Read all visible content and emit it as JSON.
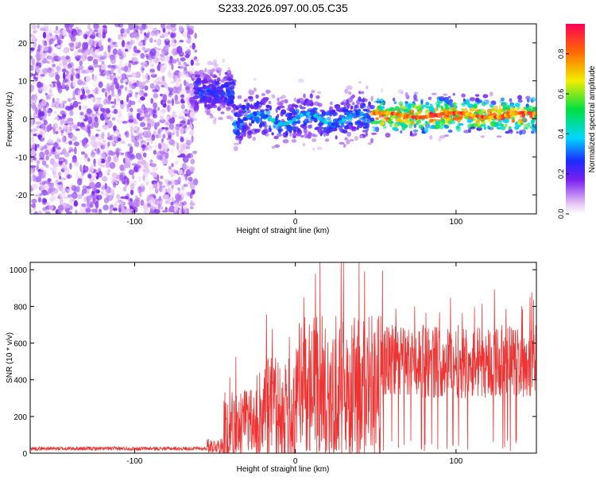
{
  "title": "S233.2026.097.00.05.C35",
  "chart_data": [
    {
      "type": "heatmap",
      "name": "spectrogram",
      "xlabel": "Height of straight line (km)",
      "ylabel": "Frequency (Hz)",
      "xlim": [
        -165,
        150
      ],
      "ylim": [
        -25,
        25
      ],
      "xticks": [
        -100,
        0,
        100
      ],
      "yticks": [
        -20,
        -10,
        0,
        10,
        20
      ],
      "colorbar": {
        "label": "Normalized spectral amplitude",
        "range": [
          0,
          0.95
        ],
        "ticks": [
          0.0,
          0.2,
          0.4,
          0.6,
          0.8
        ]
      },
      "regions": [
        {
          "x": [
            -165,
            -62
          ],
          "description": "broadband noise",
          "amplitude": 0.1
        },
        {
          "x": [
            -62,
            -38
          ],
          "center_hz": 7,
          "amplitude": 0.25
        },
        {
          "x": [
            -38,
            48
          ],
          "center_hz": 0,
          "amplitude": 0.3
        },
        {
          "x": [
            48,
            150
          ],
          "center_hz": 1,
          "amplitude": 0.85
        }
      ]
    },
    {
      "type": "line",
      "name": "snr",
      "xlabel": "Height of straight line (km)",
      "ylabel": "SNR (10 * v/v)",
      "xlim": [
        -165,
        150
      ],
      "ylim": [
        0,
        1040
      ],
      "xticks": [
        -100,
        0,
        100
      ],
      "yticks": [
        0,
        200,
        400,
        600,
        800,
        1000
      ],
      "color": "#ee3333",
      "segments": [
        {
          "x": [
            -165,
            -55
          ],
          "base": 25,
          "amp": 10
        },
        {
          "x": [
            -55,
            -45
          ],
          "base": 40,
          "amp": 40
        },
        {
          "x": [
            -45,
            -20
          ],
          "base": 150,
          "amp": 200
        },
        {
          "x": [
            -20,
            0
          ],
          "base": 220,
          "amp": 300
        },
        {
          "x": [
            0,
            55
          ],
          "base": 350,
          "amp": 400
        },
        {
          "x": [
            55,
            150
          ],
          "base": 500,
          "amp": 200
        }
      ]
    }
  ]
}
